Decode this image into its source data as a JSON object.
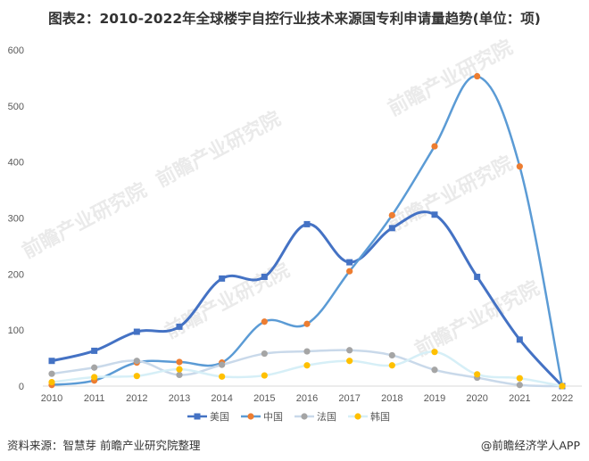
{
  "title": "图表2：2010-2022年全球楼宇自控行业技术来源国专利申请量趋势(单位：项)",
  "source": "资料来源：智慧芽 前瞻产业研究院整理",
  "brand": "@前瞻经济学人APP",
  "watermark": "前瞻产业研究院",
  "chart_data": {
    "type": "line",
    "x": [
      "2010",
      "2011",
      "2012",
      "2013",
      "2014",
      "2015",
      "2016",
      "2017",
      "2018",
      "2019",
      "2020",
      "2021",
      "2022"
    ],
    "ylim": [
      0,
      600
    ],
    "yticks": [
      0,
      100,
      200,
      300,
      400,
      500,
      600
    ],
    "grid": false,
    "legend_position": "bottom",
    "series": [
      {
        "name": "美国",
        "color": "#4472c4",
        "marker": "square",
        "values": [
          45,
          63,
          97,
          106,
          192,
          195,
          289,
          221,
          282,
          306,
          195,
          83,
          0
        ]
      },
      {
        "name": "中国",
        "color": "#ed7d31",
        "marker": "circle",
        "values": [
          2,
          10,
          42,
          43,
          42,
          115,
          111,
          205,
          305,
          428,
          553,
          392,
          0
        ]
      },
      {
        "name": "法国",
        "color": "#a5a5a5",
        "marker": "circle",
        "values": [
          22,
          33,
          45,
          20,
          38,
          58,
          62,
          64,
          55,
          29,
          15,
          2,
          0
        ]
      },
      {
        "name": "韩国",
        "color": "#ffc000",
        "marker": "circle",
        "values": [
          7,
          16,
          18,
          30,
          17,
          19,
          37,
          45,
          37,
          61,
          21,
          14,
          0
        ]
      }
    ]
  }
}
